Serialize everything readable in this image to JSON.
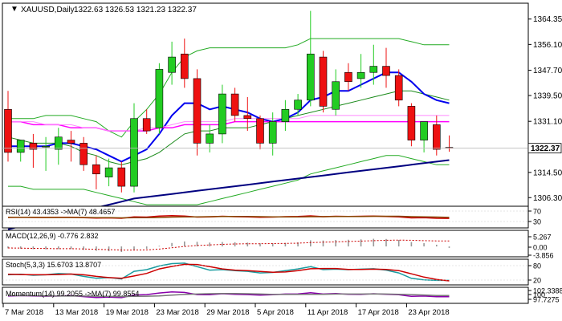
{
  "header": {
    "symbol": "XAUUSD,Daily",
    "ohlc": "1322.63 1326.53 1321.23 1322.37"
  },
  "chart_data": [
    {
      "type": "candlestick",
      "title": "XAUUSD,Daily",
      "current_price": 1322.37,
      "current_price_label": "1322.37",
      "ylim": [
        1303.5,
        1369.5
      ],
      "y_ticks": [
        1364.35,
        1356.1,
        1347.7,
        1339.5,
        1331.1,
        1322.37,
        1314.5,
        1306.3
      ],
      "y_tick_labels": [
        "1364.35",
        "1356.10",
        "1347.70",
        "1339.50",
        "1331.10",
        "1322.37",
        "1314.50",
        "1306.30"
      ],
      "x_tick_labels": [
        {
          "bar": 0,
          "label": "7 Mar 2018"
        },
        {
          "bar": 4,
          "label": "13 Mar 2018"
        },
        {
          "bar": 8,
          "label": "19 Mar 2018"
        },
        {
          "bar": 12,
          "label": "23 Mar 2018"
        },
        {
          "bar": 16,
          "label": "29 Mar 2018"
        },
        {
          "bar": 20,
          "label": "5 Apr 2018"
        },
        {
          "bar": 24,
          "label": "11 Apr 2018"
        },
        {
          "bar": 28,
          "label": "17 Apr 2018"
        },
        {
          "bar": 32,
          "label": "23 Apr 2018"
        }
      ],
      "candles": [
        {
          "o": 1335,
          "h": 1341,
          "l": 1318,
          "c": 1321
        },
        {
          "o": 1321,
          "h": 1325,
          "l": 1318,
          "c": 1325
        },
        {
          "o": 1324,
          "h": 1327,
          "l": 1316,
          "c": 1322
        },
        {
          "o": 1323,
          "h": 1326,
          "l": 1315,
          "c": 1323
        },
        {
          "o": 1322,
          "h": 1329,
          "l": 1317,
          "c": 1326
        },
        {
          "o": 1325,
          "h": 1328,
          "l": 1318,
          "c": 1324
        },
        {
          "o": 1324,
          "h": 1326,
          "l": 1315,
          "c": 1317
        },
        {
          "o": 1317,
          "h": 1320,
          "l": 1309,
          "c": 1314
        },
        {
          "o": 1313,
          "h": 1319,
          "l": 1310,
          "c": 1316
        },
        {
          "o": 1316,
          "h": 1318,
          "l": 1308,
          "c": 1310
        },
        {
          "o": 1310,
          "h": 1337,
          "l": 1308,
          "c": 1332
        },
        {
          "o": 1332,
          "h": 1335,
          "l": 1327,
          "c": 1328
        },
        {
          "o": 1329,
          "h": 1350,
          "l": 1327,
          "c": 1348
        },
        {
          "o": 1347,
          "h": 1357,
          "l": 1343,
          "c": 1352
        },
        {
          "o": 1353,
          "h": 1358,
          "l": 1342,
          "c": 1345
        },
        {
          "o": 1345,
          "h": 1348,
          "l": 1320,
          "c": 1324
        },
        {
          "o": 1324,
          "h": 1330,
          "l": 1321,
          "c": 1327
        },
        {
          "o": 1327,
          "h": 1343,
          "l": 1324,
          "c": 1340
        },
        {
          "o": 1340,
          "h": 1342,
          "l": 1331,
          "c": 1333
        },
        {
          "o": 1333,
          "h": 1339,
          "l": 1328,
          "c": 1332
        },
        {
          "o": 1332,
          "h": 1333,
          "l": 1322,
          "c": 1324
        },
        {
          "o": 1324,
          "h": 1334,
          "l": 1320,
          "c": 1331
        },
        {
          "o": 1331,
          "h": 1338,
          "l": 1328,
          "c": 1335
        },
        {
          "o": 1335,
          "h": 1340,
          "l": 1333,
          "c": 1338
        },
        {
          "o": 1338,
          "h": 1367,
          "l": 1336,
          "c": 1353
        },
        {
          "o": 1352,
          "h": 1354,
          "l": 1334,
          "c": 1336
        },
        {
          "o": 1335,
          "h": 1348,
          "l": 1333,
          "c": 1344
        },
        {
          "o": 1347,
          "h": 1350,
          "l": 1341,
          "c": 1344
        },
        {
          "o": 1345,
          "h": 1353,
          "l": 1342,
          "c": 1347
        },
        {
          "o": 1347,
          "h": 1356,
          "l": 1343,
          "c": 1349
        },
        {
          "o": 1349,
          "h": 1355,
          "l": 1342,
          "c": 1346
        },
        {
          "o": 1346,
          "h": 1348,
          "l": 1336,
          "c": 1338
        },
        {
          "o": 1336,
          "h": 1337,
          "l": 1323,
          "c": 1325
        },
        {
          "o": 1325,
          "h": 1331,
          "l": 1321,
          "c": 1331
        },
        {
          "o": 1330,
          "h": 1333,
          "l": 1320,
          "c": 1322
        },
        {
          "o": 1322.63,
          "h": 1326.53,
          "l": 1321.23,
          "c": 1322.37
        }
      ],
      "overlays": [
        {
          "name": "Bollinger upper",
          "color": "#22aa22",
          "values": [
            1332,
            1332,
            1332,
            1333,
            1333,
            1333,
            1332,
            1331,
            1328,
            1326,
            1331,
            1335,
            1340,
            1347,
            1352,
            1354,
            1355,
            1355,
            1355,
            1355,
            1355,
            1355,
            1355,
            1356,
            1358,
            1358,
            1358,
            1358,
            1358,
            1358,
            1358,
            1358,
            1357,
            1356,
            1356,
            1356
          ]
        },
        {
          "name": "Bollinger lower",
          "color": "#22aa22",
          "values": [
            1310,
            1310,
            1309,
            1309,
            1309,
            1309,
            1309,
            1308,
            1307,
            1306,
            1305,
            1304,
            1304,
            1304,
            1304,
            1304,
            1305,
            1306,
            1307,
            1308,
            1309,
            1310,
            1311,
            1312,
            1314,
            1315,
            1316,
            1317,
            1318,
            1319,
            1320,
            1320,
            1319,
            1318,
            1317,
            1317
          ]
        },
        {
          "name": "Middle band",
          "color": "#1a8a1a",
          "values": [
            1326,
            1325,
            1324,
            1324,
            1324,
            1323,
            1321,
            1320,
            1318,
            1317,
            1318,
            1319,
            1321,
            1324,
            1327,
            1328,
            1328,
            1329,
            1329,
            1329,
            1330,
            1331,
            1332,
            1333,
            1334,
            1335,
            1336,
            1337,
            1338,
            1339,
            1340,
            1341,
            1341,
            1340,
            1339,
            1338
          ]
        },
        {
          "name": "Fast MA",
          "color": "#0000ee",
          "values": [
            1323,
            1323,
            1323,
            1323,
            1324,
            1324,
            1323,
            1322,
            1320,
            1318,
            1320,
            1322,
            1327,
            1333,
            1337,
            1337,
            1335,
            1336,
            1335,
            1334,
            1332,
            1331,
            1332,
            1334,
            1338,
            1339,
            1341,
            1341,
            1343,
            1345,
            1347,
            1347,
            1344,
            1340,
            1338,
            1337
          ]
        },
        {
          "name": "Pink MA",
          "color": "#ff00ff",
          "values": [
            1331,
            1331,
            1330,
            1330,
            1330,
            1329,
            1329,
            1329,
            1328,
            1328,
            1328,
            1328,
            1329,
            1329,
            1330,
            1330,
            1330,
            1330,
            1331,
            1331,
            1331,
            1331,
            1331,
            1331,
            1331,
            1331,
            1331,
            1331,
            1331,
            1331,
            1331,
            1331,
            1331,
            1331,
            1331,
            1331
          ]
        },
        {
          "name": "Pink MA light",
          "color": "#ff88ff",
          "values": [
            1331,
            1331,
            1331,
            1330,
            1330,
            1330,
            1329,
            1329,
            1328,
            1328,
            1328,
            1329,
            1329,
            1330,
            1331,
            1331,
            1331,
            1331,
            1332,
            1332,
            1332,
            1332,
            1332,
            1332,
            1333,
            1333,
            1333,
            1333,
            1333,
            1333,
            1333,
            1333,
            1333,
            1333,
            1333,
            1333
          ]
        },
        {
          "name": "Slow MA",
          "color": "#000080",
          "values": [
            1296,
            1297,
            1298,
            1299,
            1300,
            1301,
            1302,
            1303,
            1304,
            1305,
            1306,
            1306.5,
            1307,
            1307.5,
            1308,
            1308.5,
            1309,
            1309.5,
            1310,
            1310.5,
            1311,
            1311.5,
            1312,
            1312.5,
            1313,
            1313.5,
            1314,
            1314.5,
            1315,
            1315.5,
            1316,
            1316.5,
            1317,
            1317.5,
            1318,
            1318.5
          ]
        }
      ]
    },
    {
      "type": "line",
      "title": "RSI(14) 43.4353  ->MA(7) 48.4657",
      "y_tick_labels": [
        "70",
        "30"
      ],
      "ylim": [
        0,
        100
      ],
      "series": [
        {
          "name": "RSI(14)",
          "color": "#cc0000",
          "values": [
            48,
            49,
            48,
            48,
            49,
            49,
            47,
            45,
            46,
            44,
            51,
            50,
            55,
            57,
            55,
            50,
            51,
            54,
            52,
            51,
            49,
            50,
            52,
            53,
            56,
            52,
            54,
            53,
            54,
            55,
            53,
            51,
            46,
            47,
            44,
            43.4
          ]
        },
        {
          "name": "MA(7)",
          "color": "#884400",
          "values": [
            49,
            49,
            49,
            48,
            48,
            48,
            48,
            47,
            47,
            46,
            47,
            47,
            48,
            50,
            51,
            51,
            52,
            53,
            53,
            53,
            52,
            51,
            51,
            51,
            52,
            52,
            53,
            53,
            53,
            54,
            54,
            54,
            52,
            51,
            50,
            48.5
          ]
        }
      ]
    },
    {
      "type": "bar",
      "title": "MACD(12,26,9) -0.776 2.832",
      "y_tick_labels": [
        "5.267",
        "0.00",
        "-3.856"
      ],
      "ylim": [
        -5,
        8
      ],
      "series": [
        {
          "name": "MACD",
          "color": "#999999",
          "values": [
            -1,
            -1.2,
            -1.4,
            -1.5,
            -1.4,
            -1.4,
            -1.8,
            -2.3,
            -2.5,
            -2.9,
            -1.8,
            -1.2,
            0.3,
            1.8,
            2.6,
            2.4,
            2.0,
            2.3,
            2.2,
            2.0,
            1.6,
            1.6,
            1.8,
            2.1,
            3.2,
            3.1,
            3.4,
            3.5,
            3.7,
            4.0,
            3.9,
            3.4,
            2.3,
            1.7,
            0.9,
            -0.776
          ]
        },
        {
          "name": "Signal",
          "color": "#cc0000",
          "values": [
            -0.8,
            -0.9,
            -1.0,
            -1.1,
            -1.2,
            -1.2,
            -1.3,
            -1.5,
            -1.7,
            -1.9,
            -1.9,
            -1.8,
            -1.4,
            -0.7,
            0,
            0.5,
            0.8,
            1.1,
            1.3,
            1.4,
            1.4,
            1.5,
            1.6,
            1.7,
            2.0,
            2.2,
            2.4,
            2.6,
            2.8,
            3.0,
            3.2,
            3.3,
            3.2,
            3.0,
            2.9,
            2.832
          ]
        }
      ]
    },
    {
      "type": "line",
      "title": "Stoch(5,3,3) 15.6703 13.8707",
      "y_tick_labels": [
        "80",
        "20"
      ],
      "ylim": [
        0,
        100
      ],
      "series": [
        {
          "name": "%K",
          "color": "#1a9ca0",
          "values": [
            40,
            42,
            38,
            40,
            45,
            43,
            33,
            25,
            28,
            22,
            55,
            62,
            78,
            88,
            90,
            75,
            60,
            62,
            58,
            55,
            48,
            50,
            58,
            65,
            75,
            62,
            64,
            62,
            64,
            66,
            60,
            48,
            25,
            18,
            16,
            15.7
          ]
        },
        {
          "name": "%D",
          "color": "#cc0000",
          "values": [
            42,
            41,
            40,
            40,
            41,
            43,
            40,
            33,
            28,
            25,
            35,
            46,
            65,
            76,
            85,
            84,
            75,
            65,
            60,
            58,
            54,
            51,
            52,
            58,
            66,
            67,
            67,
            63,
            63,
            64,
            63,
            58,
            44,
            30,
            20,
            13.9
          ]
        }
      ]
    },
    {
      "type": "line",
      "title": "Momentum(14) 99.2055  ->MA(7) 99.8554",
      "y_tick_labels": [
        "102.3388",
        "100",
        "97.7275"
      ],
      "ylim": [
        96,
        104
      ],
      "series": [
        {
          "name": "Momentum(14)",
          "color": "#8800aa",
          "values": [
            99.6,
            99.8,
            99.7,
            99.5,
            99.6,
            99.8,
            99.3,
            98.8,
            99.0,
            98.7,
            100.2,
            100.4,
            101.3,
            101.9,
            101.6,
            100.4,
            100.3,
            100.9,
            100.6,
            100.4,
            100.1,
            100.3,
            100.7,
            100.8,
            101.4,
            100.7,
            101.0,
            100.6,
            100.5,
            100.9,
            100.6,
            100.3,
            99.4,
            99.6,
            99.2,
            99.2
          ]
        },
        {
          "name": "MA(7)",
          "color": "#777777",
          "values": [
            99.9,
            99.8,
            99.8,
            99.7,
            99.6,
            99.6,
            99.6,
            99.5,
            99.4,
            99.3,
            99.4,
            99.5,
            99.7,
            100.1,
            100.5,
            100.7,
            100.9,
            101.0,
            101.0,
            100.9,
            100.7,
            100.5,
            100.5,
            100.5,
            100.6,
            100.6,
            100.7,
            100.7,
            100.7,
            100.8,
            100.7,
            100.6,
            100.4,
            100.2,
            99.9,
            99.86
          ]
        }
      ]
    }
  ]
}
